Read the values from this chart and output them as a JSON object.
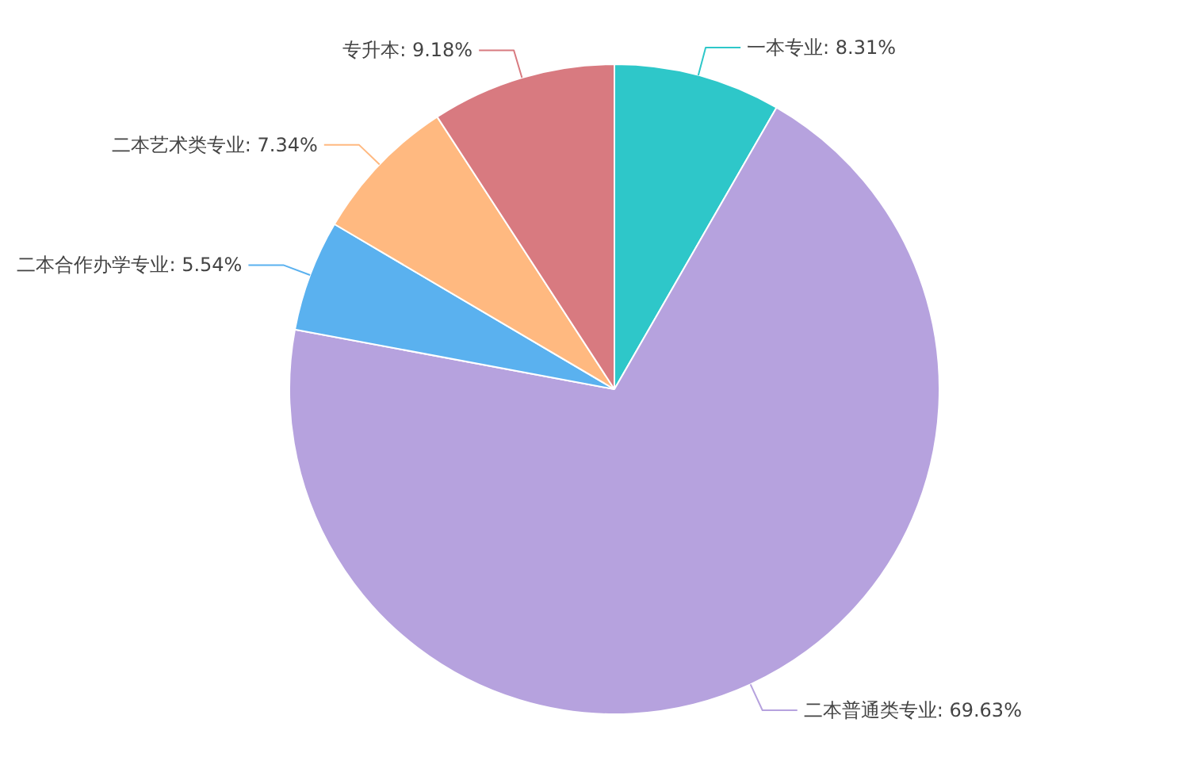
{
  "chart_data": {
    "type": "pie",
    "categories": [
      "一本专业",
      "二本普通类专业",
      "二本合作办学专业",
      "二本艺术类专业",
      "专升本"
    ],
    "values": [
      8.31,
      69.63,
      5.54,
      7.34,
      9.18
    ],
    "colors": [
      "#2ec7c9",
      "#b6a2de",
      "#5ab1ef",
      "#ffb980",
      "#d87a80"
    ],
    "value_labels": [
      "8.31%",
      "69.63%",
      "5.54%",
      "7.34%",
      "9.18%"
    ],
    "legend": false
  }
}
